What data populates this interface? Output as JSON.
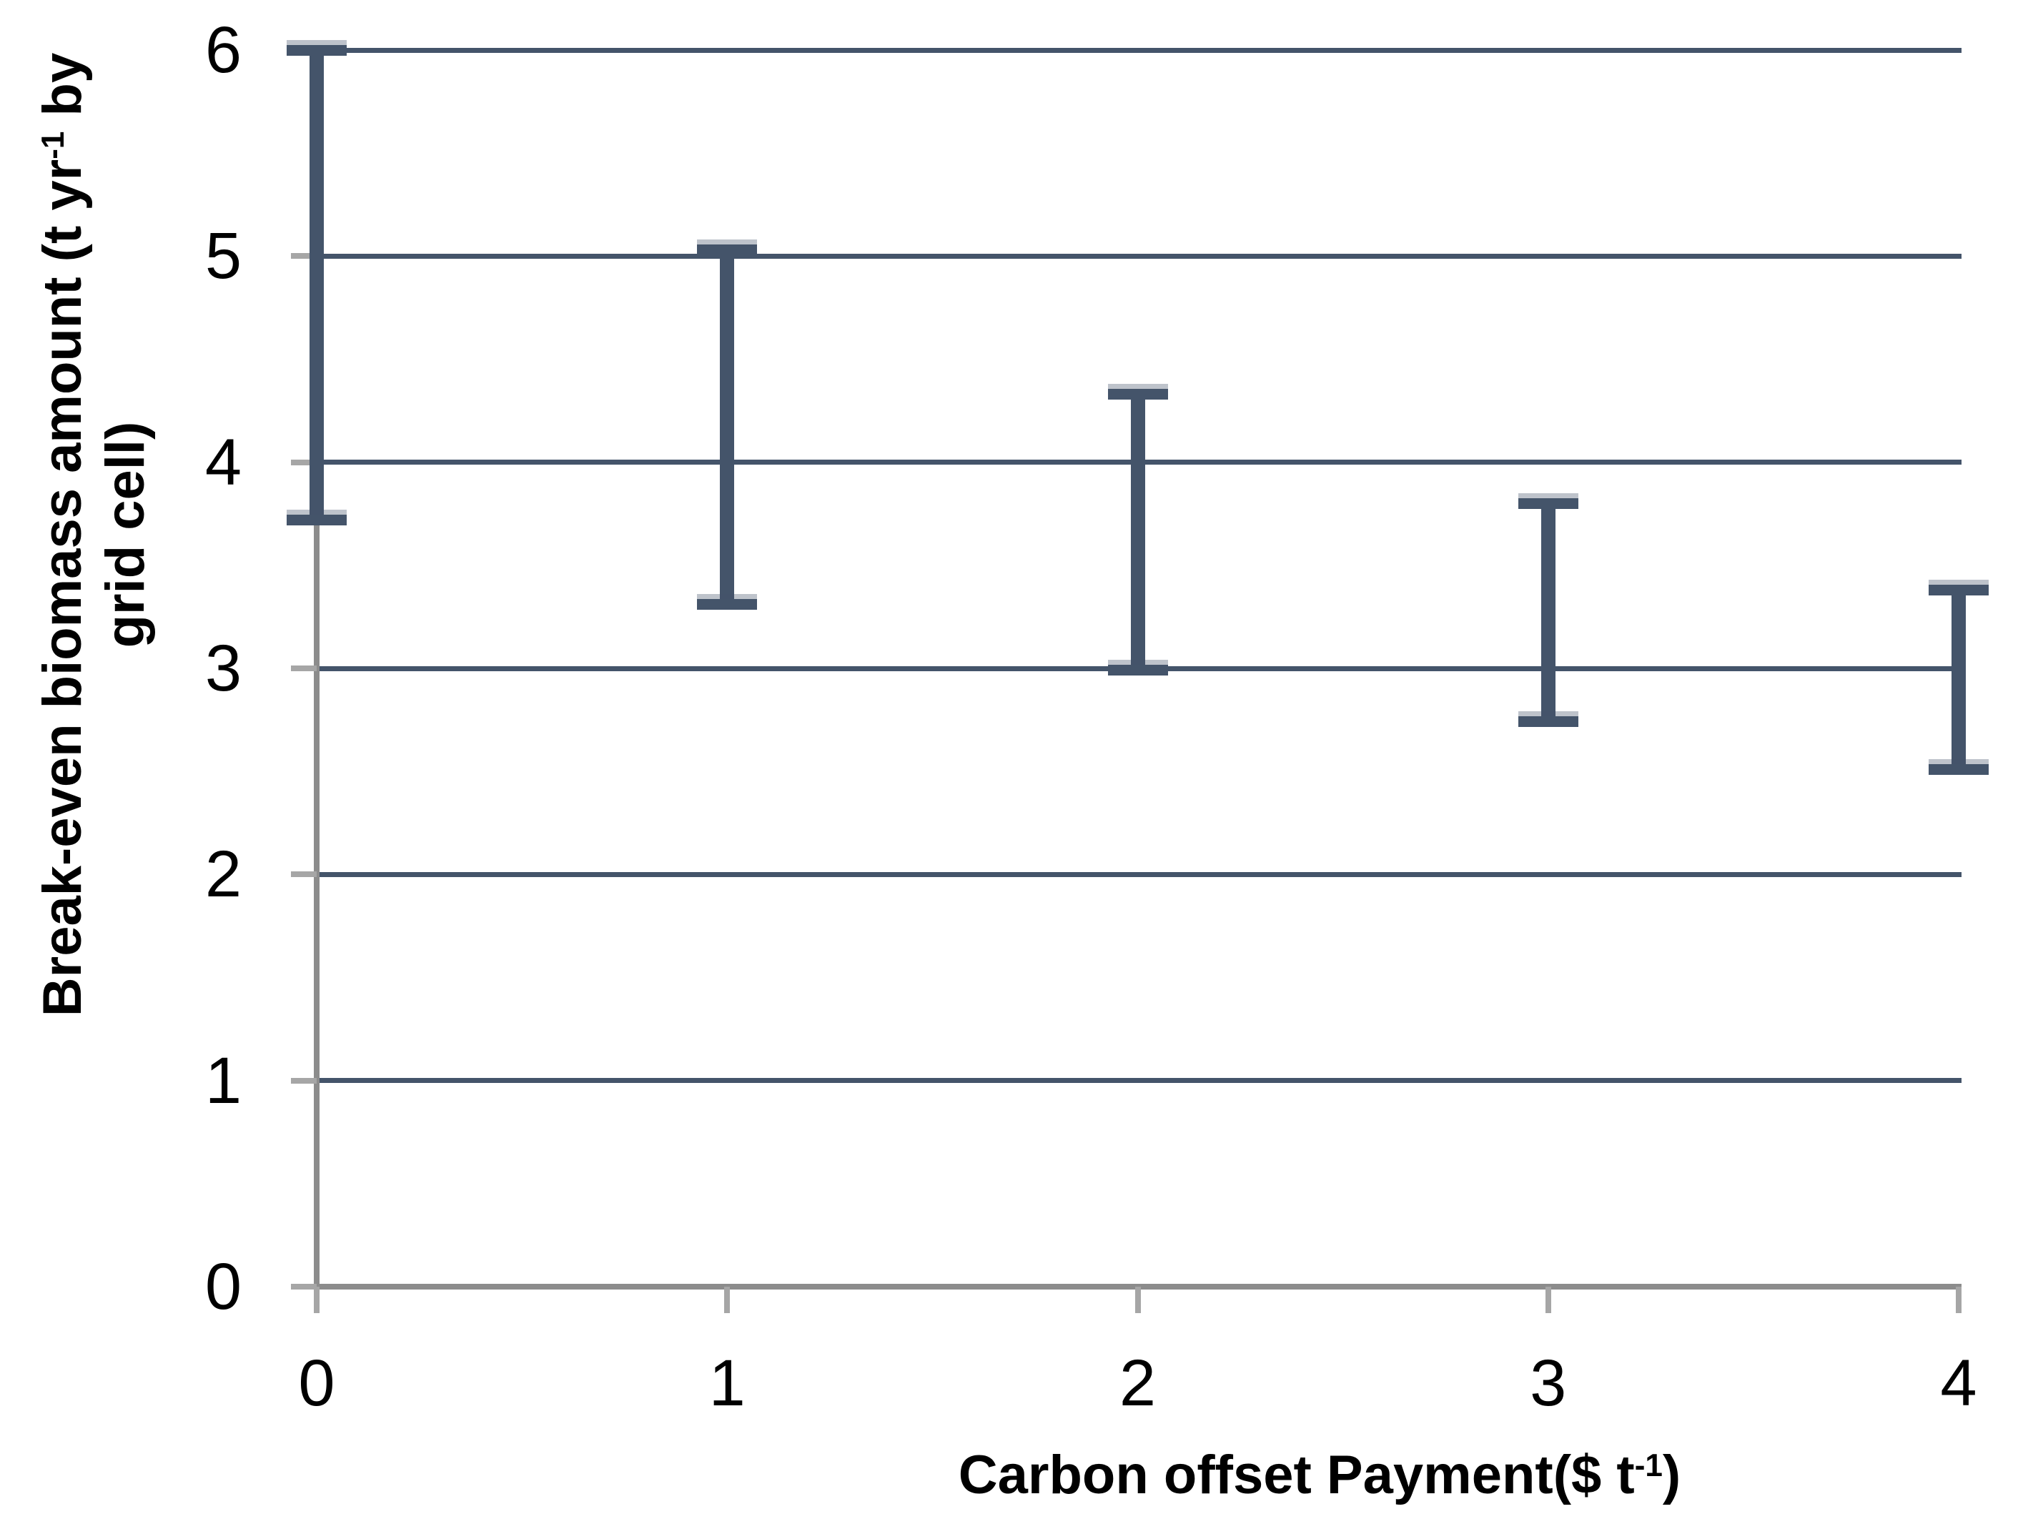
{
  "colors": {
    "bar": "#44546A",
    "gridline": "#44546A",
    "axis": "#8C8C8C",
    "tick_stub": "#A6A6A6",
    "text": "#000000",
    "cap_halo": "rgba(68,84,106,0.35)",
    "background": "#FFFFFF"
  },
  "y_axis": {
    "title_line1_pre": "Break-even biomass amount (t yr",
    "title_sup": "-1",
    "title_line1_post": " by",
    "title_line2": "grid cell)",
    "tick_labels": [
      "0",
      "1",
      "2",
      "3",
      "4",
      "5",
      "6"
    ]
  },
  "x_axis": {
    "title_pre": "Carbon offset Payment($ t",
    "title_sup": "-1",
    "title_post": ")",
    "tick_labels": [
      "0",
      "1",
      "2",
      "3",
      "4"
    ]
  },
  "chart_data": {
    "type": "error-bar-range",
    "title": "",
    "xlabel": "Carbon offset Payment($ t-1)",
    "ylabel": "Break-even biomass amount (t yr-1 by grid cell)",
    "x": [
      0,
      1,
      2,
      3,
      4
    ],
    "series": [
      {
        "name": "break-even-biomass-range",
        "low": [
          3.72,
          3.31,
          2.99,
          2.74,
          2.51
        ],
        "high": [
          6.0,
          5.03,
          4.33,
          3.8,
          3.38
        ]
      }
    ],
    "xlim": [
      0,
      4
    ],
    "ylim": [
      0,
      6
    ],
    "x_tick_interval": 1,
    "y_tick_interval": 1,
    "grid": "horizontal",
    "legend": "none"
  }
}
